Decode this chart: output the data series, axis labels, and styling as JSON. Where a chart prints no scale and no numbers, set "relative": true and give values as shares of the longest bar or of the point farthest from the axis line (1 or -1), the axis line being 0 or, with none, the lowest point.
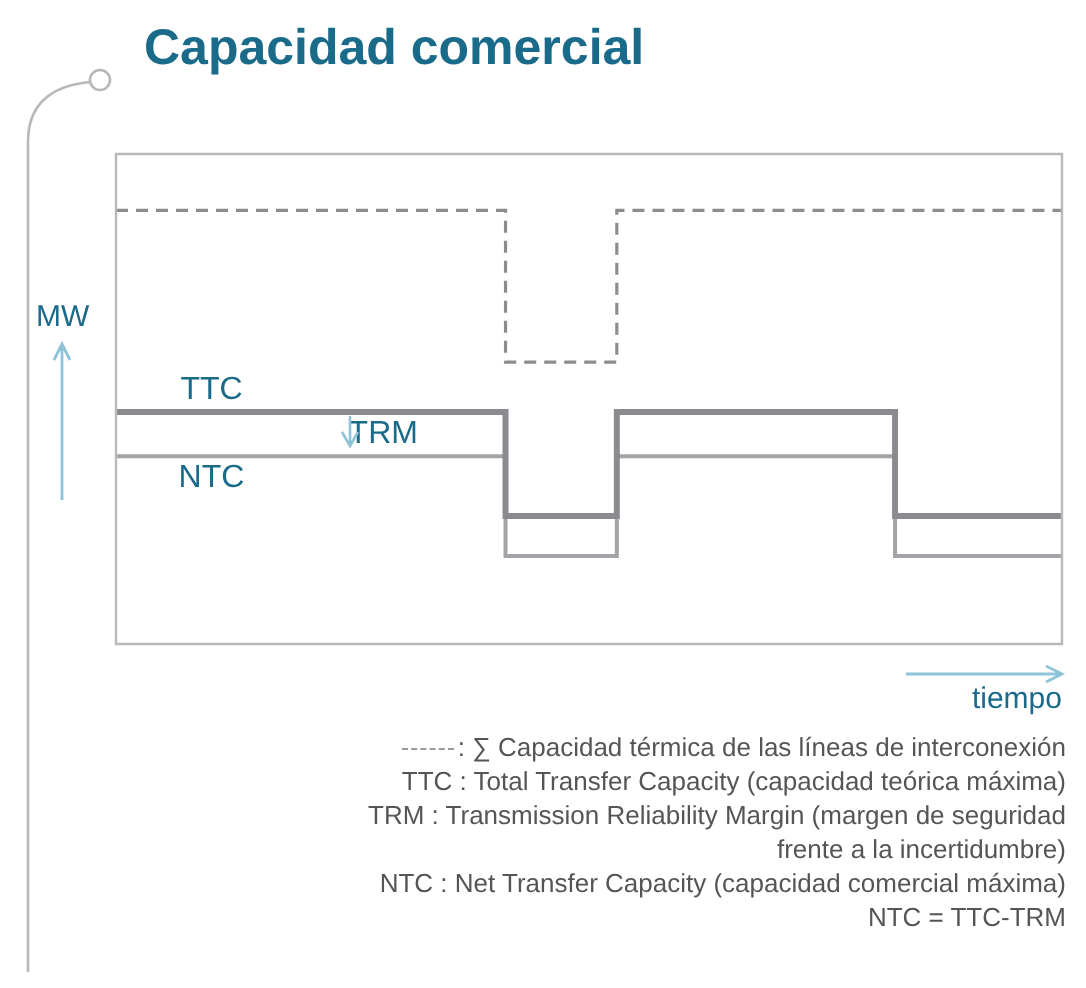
{
  "chart_data": {
    "type": "step",
    "title": "Capacidad comercial",
    "ylabel": "MW",
    "xlabel": "tiempo",
    "relative": true,
    "marker": "none",
    "categories": [
      null,
      null,
      null,
      null,
      null,
      null,
      null,
      null,
      null,
      null,
      null,
      null,
      null,
      null,
      null,
      null,
      null,
      null
    ],
    "series": [
      {
        "color": "#8c8c8c",
        "line_style": "dashed",
        "values": [
          1,
          1,
          1,
          1,
          1,
          1,
          1,
          0.65,
          0.65,
          1,
          1,
          1,
          1,
          1,
          1,
          1,
          1,
          1
        ]
      },
      {
        "name": "TTC",
        "color": "#8a8b8e",
        "line_style": "solid",
        "values": [
          0.535,
          0.535,
          0.535,
          0.535,
          0.535,
          0.535,
          0.535,
          0.295,
          0.295,
          0.535,
          0.535,
          0.535,
          0.535,
          0.535,
          0.295,
          0.295,
          0.295,
          0.295
        ]
      },
      {
        "name": "NTC",
        "color": "#a3a4a7",
        "line_style": "solid",
        "values": [
          0.433,
          0.433,
          0.433,
          0.433,
          0.433,
          0.433,
          0.433,
          0.203,
          0.203,
          0.433,
          0.433,
          0.433,
          0.433,
          0.433,
          0.203,
          0.203,
          0.203,
          0.203
        ]
      }
    ],
    "annotations": [
      "TRM",
      ": ∑ Capacidad térmica de las líneas de interconexión",
      "TTC : Total Transfer Capacity (capacidad teórica máxima)",
      "TRM : Transmission Reliability Margin (margen de seguridad frente a la incertidumbre)",
      "NTC : Net Transfer Capacity (capacidad comercial máxima)",
      "NTC = TTC-TRM"
    ]
  }
}
